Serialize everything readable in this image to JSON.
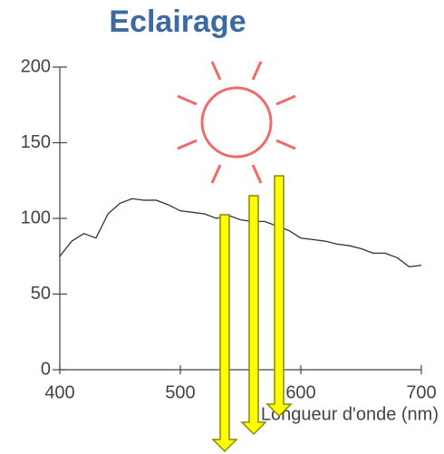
{
  "chart_data": {
    "type": "line",
    "title": "Eclairage",
    "x_label": "Longueur d'onde (nm)",
    "x": [
      400,
      410,
      420,
      430,
      440,
      450,
      460,
      470,
      480,
      490,
      500,
      510,
      520,
      530,
      540,
      550,
      560,
      570,
      580,
      590,
      600,
      610,
      620,
      630,
      640,
      650,
      660,
      670,
      680,
      690,
      700
    ],
    "values": [
      75,
      85,
      90,
      87,
      103,
      110,
      113,
      112,
      112,
      109,
      105,
      104,
      103,
      100,
      102,
      99,
      98,
      98,
      95,
      92,
      87,
      86,
      85,
      83,
      82,
      80,
      77,
      77,
      74,
      68,
      69
    ],
    "color": "#333333",
    "xlim": [
      400,
      700
    ],
    "xticks": [
      400,
      500,
      600,
      700
    ],
    "ylim": [
      0,
      200
    ],
    "yticks": [
      0,
      50,
      100,
      150,
      200
    ]
  }
}
